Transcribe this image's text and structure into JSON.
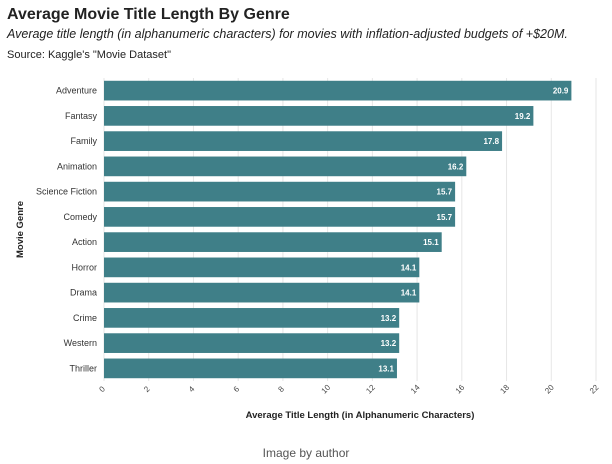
{
  "chart_data": {
    "type": "bar",
    "orientation": "horizontal",
    "title": "Average Movie Title Length By Genre",
    "subtitle": "Average title length (in alphanumeric characters) for movies with inflation-adjusted budgets of +$20M.",
    "source": "Source: Kaggle's \"Movie Dataset\"",
    "xlabel": "Average Title Length (in Alphanumeric Characters)",
    "ylabel": "Movie Genre",
    "xlim": [
      0,
      22
    ],
    "xticks": [
      0,
      2,
      4,
      6,
      8,
      10,
      12,
      14,
      16,
      18,
      20,
      22
    ],
    "grid": true,
    "bar_color": "#3f7f88",
    "categories": [
      "Adventure",
      "Fantasy",
      "Family",
      "Animation",
      "Science Fiction",
      "Comedy",
      "Action",
      "Horror",
      "Drama",
      "Crime",
      "Western",
      "Thriller"
    ],
    "values": [
      20.9,
      19.2,
      17.8,
      16.2,
      15.7,
      15.7,
      15.1,
      14.1,
      14.1,
      13.2,
      13.2,
      13.1
    ]
  },
  "caption": "Image by author"
}
